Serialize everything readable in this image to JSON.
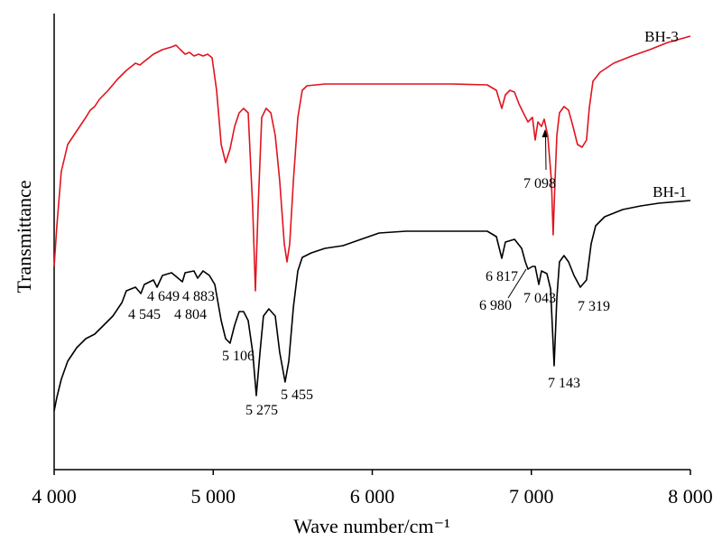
{
  "chart_data": {
    "type": "line",
    "xlabel": "Wave number/cm⁻¹",
    "ylabel": "Transmittance",
    "xlim": [
      4000,
      8000
    ],
    "xticks": [
      {
        "value": 4000,
        "label": "4 000"
      },
      {
        "value": 5000,
        "label": "5 000"
      },
      {
        "value": 6000,
        "label": "6 000"
      },
      {
        "value": 7000,
        "label": "7 000"
      },
      {
        "value": 8000,
        "label": "8 000"
      }
    ],
    "ylim": [
      0,
      101
    ],
    "series": [
      {
        "name": "BH-3",
        "color": "#e0141e",
        "x": [
          4000,
          4017,
          4045,
          4085,
          4142,
          4199,
          4227,
          4255,
          4284,
          4340,
          4397,
          4454,
          4511,
          4539,
          4567,
          4624,
          4681,
          4738,
          4766,
          4794,
          4823,
          4851,
          4879,
          4908,
          4936,
          4965,
          4993,
          5021,
          5050,
          5078,
          5106,
          5135,
          5163,
          5191,
          5220,
          5248,
          5265,
          5282,
          5305,
          5333,
          5362,
          5390,
          5418,
          5447,
          5464,
          5481,
          5504,
          5532,
          5560,
          5589,
          5702,
          5929,
          6213,
          6496,
          6723,
          6780,
          6797,
          6814,
          6837,
          6865,
          6894,
          6922,
          6950,
          6979,
          7007,
          7024,
          7041,
          7064,
          7081,
          7103,
          7126,
          7137,
          7149,
          7160,
          7177,
          7205,
          7234,
          7262,
          7290,
          7319,
          7347,
          7364,
          7387,
          7432,
          7517,
          7631,
          7744,
          7858,
          8000
        ],
        "values": [
          45,
          54,
          66,
          72,
          75,
          78,
          79.6,
          80.4,
          82,
          84,
          86.4,
          88.4,
          90,
          89.6,
          90.4,
          92,
          93,
          93.6,
          94,
          93,
          92,
          92.4,
          91.6,
          92,
          91.6,
          92,
          91.2,
          84,
          72,
          68,
          71,
          76,
          79,
          80,
          79,
          58,
          39.6,
          58,
          78,
          80,
          79,
          74,
          64,
          50,
          46,
          50,
          64,
          78,
          84,
          85,
          85.4,
          85.4,
          85.4,
          85.4,
          85.2,
          84,
          82,
          80,
          83,
          84,
          83.6,
          81,
          79,
          77,
          78,
          73,
          77,
          76,
          77.6,
          74,
          64,
          52,
          64,
          74,
          79,
          80.4,
          79.6,
          76,
          72,
          71.4,
          73,
          80,
          86,
          88,
          90,
          91.6,
          93,
          94.6,
          96
        ]
      },
      {
        "name": "BH-1",
        "color": "#000000",
        "x": [
          4000,
          4017,
          4045,
          4085,
          4142,
          4199,
          4255,
          4312,
          4369,
          4426,
          4454,
          4511,
          4545,
          4567,
          4624,
          4647,
          4681,
          4738,
          4806,
          4823,
          4879,
          4902,
          4936,
          4976,
          5010,
          5050,
          5078,
          5106,
          5135,
          5163,
          5191,
          5220,
          5248,
          5271,
          5294,
          5316,
          5350,
          5390,
          5418,
          5452,
          5475,
          5504,
          5532,
          5560,
          5617,
          5702,
          5816,
          5929,
          6043,
          6213,
          6496,
          6723,
          6780,
          6814,
          6837,
          6894,
          6939,
          6962,
          6979,
          7007,
          7024,
          7047,
          7064,
          7098,
          7121,
          7143,
          7160,
          7177,
          7205,
          7234,
          7268,
          7308,
          7347,
          7376,
          7404,
          7461,
          7575,
          7688,
          7801,
          8000
        ],
        "values": [
          13,
          16,
          20,
          24,
          27,
          29,
          30,
          32,
          34,
          37,
          39.6,
          40.4,
          39,
          41,
          42,
          40.4,
          43,
          43.6,
          41.6,
          43.6,
          44,
          42.4,
          44,
          43,
          41,
          33,
          29,
          28,
          32,
          35,
          35,
          33,
          26,
          16.4,
          26,
          34,
          35.6,
          34,
          26,
          19.4,
          24,
          36,
          44,
          47,
          48,
          49,
          49.6,
          51,
          52.4,
          52.8,
          52.8,
          52.8,
          51.6,
          46.8,
          50.4,
          51,
          49,
          46,
          44.4,
          45,
          45,
          41,
          44,
          43.4,
          40,
          23,
          38,
          46,
          47.4,
          46,
          43,
          40.4,
          42,
          50,
          54,
          56,
          57.6,
          58.4,
          59,
          59.6
        ]
      }
    ],
    "annotations": [
      "7 098",
      "6 817",
      "6 980",
      "7 043",
      "7 319",
      "7 143",
      "5 106",
      "5 275",
      "5 455",
      "4 545",
      "4 649",
      "4 883",
      "4 804"
    ]
  }
}
